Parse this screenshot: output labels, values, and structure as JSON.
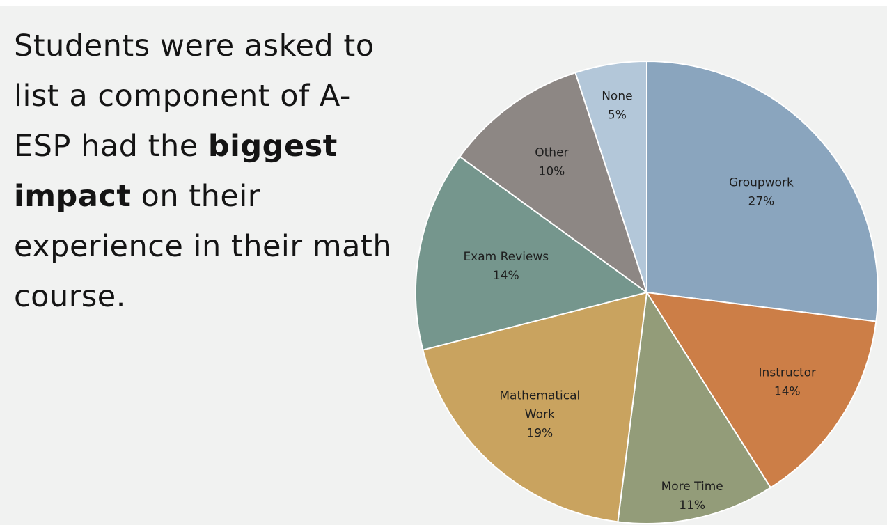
{
  "slide": {
    "headline_parts": [
      {
        "text": "Students were asked to list a component of A-ESP had the ",
        "bold": false
      },
      {
        "text": "biggest impact",
        "bold": true
      },
      {
        "text": " on their experience in their math course.",
        "bold": false
      }
    ]
  },
  "chart_data": {
    "type": "pie",
    "slices": [
      {
        "label": "Groupwork",
        "value": 27,
        "value_label": "27%",
        "color": "#8aa5be"
      },
      {
        "label": "Instructor",
        "value": 14,
        "value_label": "14%",
        "color": "#cc7e47"
      },
      {
        "label": "More Time",
        "value": 11,
        "value_label": "11%",
        "color": "#939c79"
      },
      {
        "label": "Mathematical Work",
        "value": 19,
        "value_label": "19%",
        "color": "#c9a35f"
      },
      {
        "label": "Exam Reviews",
        "value": 14,
        "value_label": "14%",
        "color": "#75968d"
      },
      {
        "label": "Other",
        "value": 10,
        "value_label": "10%",
        "color": "#8d8784"
      },
      {
        "label": "None",
        "value": 5,
        "value_label": "5%",
        "color": "#b3c7d9"
      }
    ],
    "start": "12 o'clock",
    "direction": "clockwise"
  }
}
